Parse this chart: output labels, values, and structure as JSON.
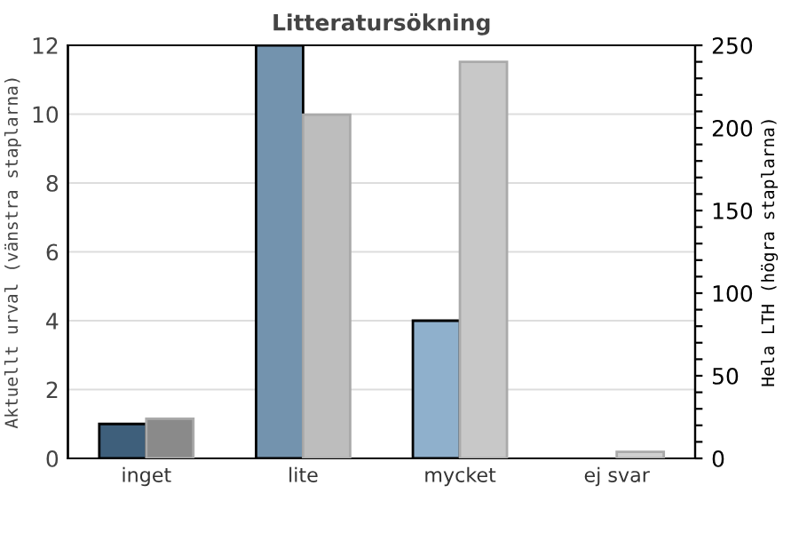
{
  "chart_data": {
    "type": "bar",
    "title": "Litteratursökning",
    "ylabel": "Aktuellt urval (vänstra staplarna)",
    "y2label": "Hela LTH (högra staplarna)",
    "categories": [
      "inget",
      "lite",
      "mycket",
      "ej svar"
    ],
    "series": [
      {
        "colors": [
          "#3e5f7b",
          "#7393ae",
          "#8fb0cc",
          null
        ],
        "values": [
          1,
          12,
          4,
          null
        ]
      },
      {
        "colors": [
          "#8a8a8a",
          "#bdbdbd",
          "#c8c8c8",
          "#d0d0d0"
        ],
        "values": [
          24,
          208,
          240,
          4
        ],
        "axis": "y2"
      }
    ],
    "ylim": [
      0,
      12
    ],
    "yticks": [
      0,
      2,
      4,
      6,
      8,
      10,
      12
    ],
    "y2lim": [
      0,
      250
    ],
    "y2ticks": [
      0,
      {
        "value": 10,
        "label": null
      },
      {
        "value": 20,
        "label": null
      },
      {
        "value": 30,
        "label": null
      },
      {
        "value": 40,
        "label": null
      },
      50,
      {
        "value": 60,
        "label": null
      },
      {
        "value": 70,
        "label": null
      },
      {
        "value": 80,
        "label": null
      },
      {
        "value": 90,
        "label": null
      },
      100,
      {
        "value": 110,
        "label": null
      },
      {
        "value": 120,
        "label": null
      },
      {
        "value": 130,
        "label": null
      },
      {
        "value": 140,
        "label": null
      },
      150,
      {
        "value": 160,
        "label": null
      },
      {
        "value": 170,
        "label": null
      },
      {
        "value": 180,
        "label": null
      },
      {
        "value": 190,
        "label": null
      },
      200,
      {
        "value": 210,
        "label": null
      },
      {
        "value": 220,
        "label": null
      },
      {
        "value": 230,
        "label": null
      },
      {
        "value": 240,
        "label": null
      },
      250
    ],
    "grid": "y"
  }
}
